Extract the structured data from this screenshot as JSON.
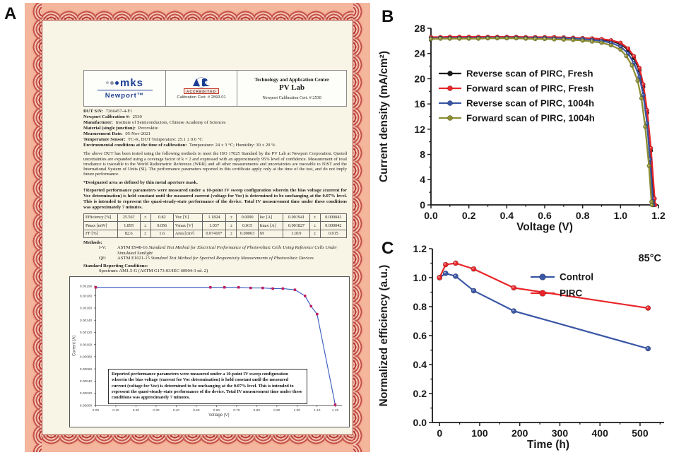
{
  "panels": {
    "a_label": "A",
    "b_label": "B",
    "c_label": "C"
  },
  "certificate": {
    "header": {
      "logo_mks": "mks",
      "logo_newport": "Newport™",
      "accredited_label": "ACCREDITED",
      "accredited_cert": "Calibration Cert. # 2893.01",
      "center_line1": "Technology and Application Center",
      "center_line2": "PV Lab",
      "center_line3": "Newport Calibration Cert. # 2530"
    },
    "info_lines": [
      {
        "label": "DUT S/N:",
        "value": "7266457-4-F1"
      },
      {
        "label": "Newport Calibration #:",
        "value": "2530"
      },
      {
        "label": "Manufacturer:",
        "value": "Institute of Semiconductors, Chinese Academy of Sciences"
      },
      {
        "label": "Material (single junction):",
        "value": "Perovskite"
      },
      {
        "label": "Measurement Date:",
        "value": "05-Nov-2021"
      },
      {
        "label": "Temperature Sensor:",
        "value": "TC-K, DUT Temperature: 25.1 ± 0.6 °C"
      },
      {
        "label": "Environmental conditions at the time of calibration:",
        "value": "Temperature: 24 ± 3 °C; Humidity: 30 ± 20 %"
      }
    ],
    "paragraph": "The above DUT has been tested using the following methods to meet the ISO 17025 Standard by the PV Lab at Newport Corporation.  Quoted uncertainties are expanded using a coverage factor of k = 2 and expressed with an approximately 95% level of confidence.  Measurement of total irradiance is traceable to the World Radiometric Reference (WRR) and all other measurements and uncertainties are traceable to NIST and the International System of Units (SI).  The performance parameters reported in this certificate apply only at the time of the test, and do not imply future performance.",
    "note1": "*Designated area as defined by thin metal aperture mask.",
    "note2": "†Reported performance parameters were measured under a 10-point IV sweep configuration wherein the bias voltage (current for Voc determination) is held constant until the measured current (voltage for Voc) is determined to be unchanging at the 0.07% level. This is intended to represent the quasi-steady-state performance of the device. Total IV measurement time under these conditions was approximately 7 minutes.",
    "table": {
      "rows": [
        [
          "Efficiency [%]",
          "25.56†",
          "±",
          "0.82",
          "Voc [V]",
          "1.1824",
          "±",
          "0.0090",
          "Isc [A]",
          "0.001941",
          "±",
          "0.000041"
        ],
        [
          "Pmax [mW]",
          "1.895",
          "±",
          "0.056",
          "Vmax [V]",
          "1.037",
          "±",
          "0.015",
          "Imax [A]",
          "0.001827",
          "±",
          "0.000042"
        ],
        [
          "FF [%]",
          "82.6",
          "±",
          "1.6",
          "Area [cm²]",
          "0.07416*",
          "±",
          "0.00063",
          "M",
          "1.019",
          "±",
          "0.015"
        ]
      ]
    },
    "methods_label": "Methods:",
    "methods": [
      {
        "key": "I-V:",
        "code": "ASTM E948-16",
        "title": "Standard Test Method for Electrical Performance of Photovoltaic Cells Using Reference Cells Under Simulated Sunlight"
      },
      {
        "key": "QE:",
        "code": "ASTM E1021-15",
        "title": "Standard Test Method for Spectral Responsivity Measurements of Photovoltaic Devices"
      }
    ],
    "src_label": "Standard Reporting Conditions:",
    "src_value": "Spectrum: AM1.5-G (ASTM G173-03/IEC 60904-3 ed. 2)",
    "inset_note": "Reported performance parameters were measured under a 10-point IV sweep configuration wherein the bias voltage (current for Voc determination) is held constant until the measured current (voltage for Voc) is determined to be unchanging at the 0.07% level. This is intended to represent the quasi-steady-state performance of the device. Total IV measurement time under these conditions was approximately 7 minutes."
  },
  "colors": {
    "black_series": "#1a1a1a",
    "red_series": "#e8262a",
    "blue_series": "#3a56a5",
    "olive_series": "#8e8f33",
    "cert_line_blue": "#3a5fc0",
    "cert_marker_red": "#c2185b",
    "border_red": "#bf4140",
    "cream": "#f9f5e6"
  },
  "chart_data": [
    {
      "id": "jv",
      "type": "line",
      "xlabel": "Voltage (V)",
      "ylabel": "Current density (mA/cm²)",
      "xlim": [
        0,
        1.2
      ],
      "ylim": [
        0,
        28
      ],
      "xticks": [
        [
          0,
          "0.0"
        ],
        [
          0.2,
          "0.2"
        ],
        [
          0.4,
          "0.4"
        ],
        [
          0.6,
          "0.6"
        ],
        [
          0.8,
          "0.8"
        ],
        [
          1.0,
          "1.0"
        ],
        [
          1.2,
          "1.2"
        ]
      ],
      "yticks": [
        [
          0,
          "0"
        ],
        [
          4,
          "4"
        ],
        [
          8,
          "8"
        ],
        [
          12,
          "12"
        ],
        [
          16,
          "16"
        ],
        [
          20,
          "20"
        ],
        [
          24,
          "24"
        ],
        [
          28,
          "28"
        ]
      ],
      "xminor": [
        0.1,
        0.3,
        0.5,
        0.7,
        0.9,
        1.1
      ],
      "yminor": [
        2,
        6,
        10,
        14,
        18,
        22,
        26
      ],
      "legend_position": "upper-left-inside",
      "series": [
        {
          "name": "Reverse scan of PIRC, Fresh",
          "color": "#1a1a1a",
          "points": [
            [
              0,
              26.5
            ],
            [
              0.05,
              26.5
            ],
            [
              0.1,
              26.5
            ],
            [
              0.15,
              26.5
            ],
            [
              0.2,
              26.5
            ],
            [
              0.25,
              26.5
            ],
            [
              0.3,
              26.5
            ],
            [
              0.35,
              26.55
            ],
            [
              0.4,
              26.55
            ],
            [
              0.45,
              26.55
            ],
            [
              0.5,
              26.55
            ],
            [
              0.55,
              26.5
            ],
            [
              0.6,
              26.5
            ],
            [
              0.65,
              26.5
            ],
            [
              0.7,
              26.5
            ],
            [
              0.75,
              26.45
            ],
            [
              0.8,
              26.4
            ],
            [
              0.85,
              26.3
            ],
            [
              0.9,
              26.2
            ],
            [
              0.95,
              26.0
            ],
            [
              1.0,
              25.5
            ],
            [
              1.04,
              24.6
            ],
            [
              1.07,
              23.3
            ],
            [
              1.1,
              21.3
            ],
            [
              1.12,
              18.7
            ],
            [
              1.14,
              14.6
            ],
            [
              1.16,
              8.6
            ],
            [
              1.175,
              0.8
            ],
            [
              1.178,
              0
            ]
          ]
        },
        {
          "name": "Forward scan of PIRC, Fresh",
          "color": "#e8262a",
          "points": [
            [
              0,
              26.6
            ],
            [
              0.05,
              26.6
            ],
            [
              0.1,
              26.65
            ],
            [
              0.15,
              26.65
            ],
            [
              0.2,
              26.65
            ],
            [
              0.25,
              26.65
            ],
            [
              0.3,
              26.65
            ],
            [
              0.35,
              26.65
            ],
            [
              0.4,
              26.65
            ],
            [
              0.45,
              26.65
            ],
            [
              0.5,
              26.6
            ],
            [
              0.55,
              26.6
            ],
            [
              0.6,
              26.6
            ],
            [
              0.65,
              26.6
            ],
            [
              0.7,
              26.55
            ],
            [
              0.75,
              26.5
            ],
            [
              0.8,
              26.45
            ],
            [
              0.85,
              26.4
            ],
            [
              0.9,
              26.3
            ],
            [
              0.95,
              26.1
            ],
            [
              1.0,
              25.7
            ],
            [
              1.04,
              24.8
            ],
            [
              1.07,
              23.6
            ],
            [
              1.1,
              21.7
            ],
            [
              1.12,
              19.1
            ],
            [
              1.14,
              15.0
            ],
            [
              1.16,
              9.0
            ],
            [
              1.18,
              1.0
            ],
            [
              1.183,
              0
            ]
          ]
        },
        {
          "name": "Reverse scan of PIRC, 1004h",
          "color": "#3a56a5",
          "points": [
            [
              0,
              26.4
            ],
            [
              0.05,
              26.45
            ],
            [
              0.1,
              26.45
            ],
            [
              0.15,
              26.45
            ],
            [
              0.2,
              26.45
            ],
            [
              0.25,
              26.45
            ],
            [
              0.3,
              26.5
            ],
            [
              0.35,
              26.5
            ],
            [
              0.4,
              26.5
            ],
            [
              0.45,
              26.5
            ],
            [
              0.5,
              26.45
            ],
            [
              0.55,
              26.45
            ],
            [
              0.6,
              26.45
            ],
            [
              0.65,
              26.4
            ],
            [
              0.7,
              26.4
            ],
            [
              0.75,
              26.35
            ],
            [
              0.8,
              26.3
            ],
            [
              0.85,
              26.15
            ],
            [
              0.9,
              26.0
            ],
            [
              0.95,
              25.7
            ],
            [
              1.0,
              25.1
            ],
            [
              1.04,
              24.0
            ],
            [
              1.07,
              22.5
            ],
            [
              1.1,
              20.3
            ],
            [
              1.12,
              17.4
            ],
            [
              1.14,
              12.9
            ],
            [
              1.155,
              7.2
            ],
            [
              1.17,
              0.6
            ],
            [
              1.172,
              0
            ]
          ]
        },
        {
          "name": "Forward scan of PIRC, 1004h",
          "color": "#8e8f33",
          "points": [
            [
              0,
              26.3
            ],
            [
              0.05,
              26.35
            ],
            [
              0.1,
              26.35
            ],
            [
              0.15,
              26.35
            ],
            [
              0.2,
              26.35
            ],
            [
              0.25,
              26.35
            ],
            [
              0.3,
              26.4
            ],
            [
              0.35,
              26.4
            ],
            [
              0.4,
              26.4
            ],
            [
              0.45,
              26.4
            ],
            [
              0.5,
              26.35
            ],
            [
              0.55,
              26.3
            ],
            [
              0.6,
              26.3
            ],
            [
              0.65,
              26.25
            ],
            [
              0.7,
              26.2
            ],
            [
              0.75,
              26.15
            ],
            [
              0.8,
              26.05
            ],
            [
              0.85,
              25.9
            ],
            [
              0.9,
              25.7
            ],
            [
              0.95,
              25.3
            ],
            [
              1.0,
              24.6
            ],
            [
              1.03,
              23.6
            ],
            [
              1.06,
              22.1
            ],
            [
              1.09,
              19.7
            ],
            [
              1.11,
              16.9
            ],
            [
              1.13,
              12.4
            ],
            [
              1.15,
              6.2
            ],
            [
              1.163,
              0.5
            ],
            [
              1.165,
              0
            ]
          ]
        }
      ]
    },
    {
      "id": "stability",
      "type": "line",
      "xlabel": "Time (h)",
      "ylabel": "Normalized efficiency (a.u.)",
      "annotation": "85°C",
      "xlim": [
        -18,
        560
      ],
      "ylim": [
        0,
        1.2
      ],
      "xticks": [
        [
          0,
          "0"
        ],
        [
          100,
          "100"
        ],
        [
          200,
          "200"
        ],
        [
          300,
          "300"
        ],
        [
          400,
          "400"
        ],
        [
          500,
          "500"
        ]
      ],
      "yticks": [
        [
          0,
          "0.0"
        ],
        [
          0.2,
          "0.2"
        ],
        [
          0.4,
          "0.4"
        ],
        [
          0.6,
          "0.6"
        ],
        [
          0.8,
          "0.8"
        ],
        [
          1.0,
          "1.0"
        ],
        [
          1.2,
          "1.2"
        ]
      ],
      "xminor": [
        50,
        150,
        250,
        350,
        450,
        550
      ],
      "yminor": [
        0.1,
        0.3,
        0.5,
        0.7,
        0.9,
        1.1
      ],
      "legend_position": "upper-right-inside",
      "series": [
        {
          "name": "Control",
          "color": "#3a56a5",
          "points": [
            [
              0,
              1.0
            ],
            [
              15,
              1.03
            ],
            [
              40,
              1.01
            ],
            [
              85,
              0.91
            ],
            [
              185,
              0.77
            ],
            [
              520,
              0.51
            ]
          ]
        },
        {
          "name": "PIRC",
          "color": "#e8262a",
          "points": [
            [
              0,
              1.0
            ],
            [
              15,
              1.09
            ],
            [
              40,
              1.1
            ],
            [
              85,
              1.06
            ],
            [
              185,
              0.93
            ],
            [
              520,
              0.79
            ]
          ]
        }
      ]
    },
    {
      "id": "cert_iv",
      "type": "line",
      "xlabel": "Voltage (V)",
      "ylabel": "Current (A)",
      "xlim": [
        0,
        1.225
      ],
      "ylim": [
        0,
        0.00196
      ],
      "xticks": [
        [
          0,
          "0.00"
        ],
        [
          0.1,
          "0.10"
        ],
        [
          0.2,
          "0.20"
        ],
        [
          0.3,
          "0.30"
        ],
        [
          0.4,
          "0.40"
        ],
        [
          0.5,
          "0.50"
        ],
        [
          0.6,
          "0.60"
        ],
        [
          0.7,
          "0.70"
        ],
        [
          0.8,
          "0.80"
        ],
        [
          0.9,
          "0.90"
        ],
        [
          1.0,
          "1.00"
        ],
        [
          1.1,
          "1.10"
        ],
        [
          1.19,
          "1.19"
        ]
      ],
      "yticks": [
        [
          0,
          "0.00000"
        ],
        [
          0.0002,
          "0.00020"
        ],
        [
          0.0004,
          "0.00040"
        ],
        [
          0.0006,
          "0.00060"
        ],
        [
          0.0008,
          "0.00080"
        ],
        [
          0.001,
          "0.00100"
        ],
        [
          0.0012,
          "0.00120"
        ],
        [
          0.0014,
          "0.00140"
        ],
        [
          0.0016,
          "0.00160"
        ],
        [
          0.0018,
          "0.00180"
        ],
        [
          0.00196,
          "0.00196"
        ]
      ],
      "series": [
        {
          "name": "10-point IV sweep",
          "color": "#3a5fc0",
          "marker": "square",
          "marker_color": "#c2185b",
          "points": [
            [
              0,
              0.00194
            ],
            [
              0.57,
              0.00194
            ],
            [
              0.64,
              0.00194
            ],
            [
              0.71,
              0.00194
            ],
            [
              0.77,
              0.00193
            ],
            [
              0.83,
              0.00193
            ],
            [
              0.88,
              0.00192
            ],
            [
              0.93,
              0.00192
            ],
            [
              0.99,
              0.0019
            ],
            [
              1.04,
              0.0018
            ],
            [
              1.07,
              0.00163
            ],
            [
              1.1,
              0.0015
            ],
            [
              1.19,
              1e-05
            ]
          ]
        }
      ]
    }
  ]
}
